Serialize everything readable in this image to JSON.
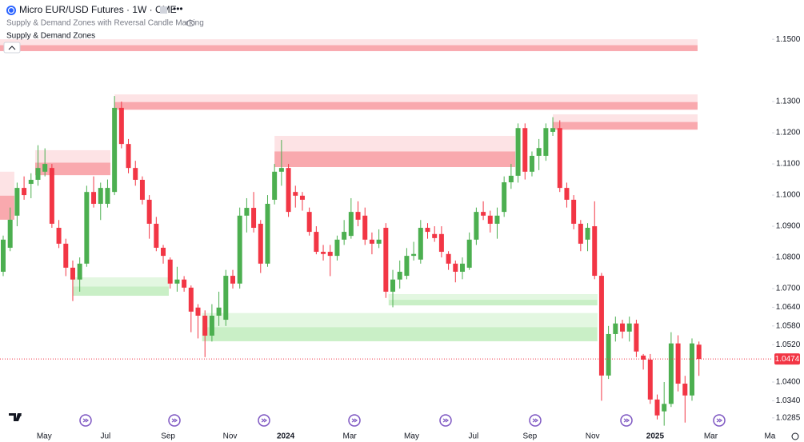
{
  "chart_data": {
    "type": "candlestick",
    "title": "Micro EUR/USD Futures · 1W · CME",
    "indicator_title": "Supply & Demand Zones with Reversal Candle Marking",
    "indicator_name": "Supply & Demand Zones",
    "up_color": "#4caf50",
    "down_color": "#f23645",
    "supply_colors": [
      "#fde3e5",
      "#f9a9ae"
    ],
    "demand_colors": [
      "#c9efc6",
      "#e3f7e1"
    ],
    "grid": false,
    "xlim": [
      -0.46,
      110.5
    ],
    "ylim": [
      1.0241,
      1.1626
    ],
    "xticks": [
      {
        "value": 5.9,
        "label": "May"
      },
      {
        "value": 14.7,
        "label": "Jul"
      },
      {
        "value": 23.7,
        "label": "Sep"
      },
      {
        "value": 32.6,
        "label": "Nov"
      },
      {
        "value": 40.6,
        "label": "2024"
      },
      {
        "value": 49.8,
        "label": "Mar"
      },
      {
        "value": 58.7,
        "label": "May"
      },
      {
        "value": 67.6,
        "label": "Jul"
      },
      {
        "value": 75.7,
        "label": "Sep"
      },
      {
        "value": 84.7,
        "label": "Nov"
      },
      {
        "value": 93.7,
        "label": "2025"
      },
      {
        "value": 101.7,
        "label": "Mar"
      },
      {
        "value": 110.2,
        "label": "Ma"
      }
    ],
    "yticks": [
      {
        "value": 1.15,
        "label": "1.1500"
      },
      {
        "value": 1.13,
        "label": "1.1300"
      },
      {
        "value": 1.12,
        "label": "1.1200"
      },
      {
        "value": 1.11,
        "label": "1.1100"
      },
      {
        "value": 1.1,
        "label": "1.1000"
      },
      {
        "value": 1.09,
        "label": "1.0900"
      },
      {
        "value": 1.08,
        "label": "1.0800"
      },
      {
        "value": 1.07,
        "label": "1.0700"
      },
      {
        "value": 1.064,
        "label": "1.0640"
      },
      {
        "value": 1.058,
        "label": "1.0580"
      },
      {
        "value": 1.052,
        "label": "1.0520"
      },
      {
        "value": 1.04,
        "label": "1.0400"
      },
      {
        "value": 1.034,
        "label": "1.0340"
      },
      {
        "value": 1.0285,
        "label": "1.0285"
      }
    ],
    "last_price": {
      "value": 1.0474,
      "label": "1.0474"
    },
    "zones": [
      {
        "kind": "supply",
        "start": -0.46,
        "end": 99.8,
        "top": 1.15,
        "bottom": 1.1462
      },
      {
        "kind": "supply",
        "start": 16,
        "end": 99.8,
        "top": 1.1323,
        "bottom": 1.1274
      },
      {
        "kind": "supply",
        "start": 79,
        "end": 99.8,
        "top": 1.1259,
        "bottom": 1.121
      },
      {
        "kind": "supply",
        "start": 39,
        "end": 73.6,
        "top": 1.119,
        "bottom": 1.109
      },
      {
        "kind": "supply",
        "start": 4.6,
        "end": 15.4,
        "top": 1.1144,
        "bottom": 1.1064
      },
      {
        "kind": "supply",
        "start": -0.46,
        "end": 1.6,
        "top": 1.1075,
        "bottom": 1.0921
      },
      {
        "kind": "demand",
        "start": 10,
        "end": 23.8,
        "top": 1.0736,
        "bottom": 1.0677
      },
      {
        "kind": "demand",
        "start": 28.6,
        "end": 85.4,
        "top": 1.0621,
        "bottom": 1.0531
      },
      {
        "kind": "demand",
        "start": 55.4,
        "end": 85.4,
        "top": 1.0682,
        "bottom": 1.0646
      }
    ],
    "candles": [
      [
        1.0754,
        1.087,
        1.074,
        1.0857
      ],
      [
        1.0831,
        1.096,
        1.082,
        1.0921
      ],
      [
        1.0934,
        1.104,
        1.09,
        1.1023
      ],
      [
        1.1023,
        1.106,
        1.0985,
        1.1
      ],
      [
        1.1036,
        1.107,
        1.099,
        1.1049
      ],
      [
        1.1049,
        1.116,
        1.103,
        1.1087
      ],
      [
        1.1075,
        1.115,
        1.106,
        1.11
      ],
      [
        1.1087,
        1.11,
        1.0895,
        1.0908
      ],
      [
        1.0895,
        1.092,
        1.083,
        1.0844
      ],
      [
        1.0844,
        1.086,
        1.074,
        1.0767
      ],
      [
        1.0767,
        1.079,
        1.066,
        1.0729
      ],
      [
        1.0729,
        1.08,
        1.069,
        1.078
      ],
      [
        1.078,
        1.103,
        1.077,
        1.101
      ],
      [
        1.101,
        1.106,
        1.096,
        1.0972
      ],
      [
        1.0972,
        1.104,
        1.092,
        1.1023
      ],
      [
        1.0972,
        1.105,
        1.096,
        1.1023
      ],
      [
        1.101,
        1.1318,
        1.1,
        1.128
      ],
      [
        1.128,
        1.13,
        1.115,
        1.1164
      ],
      [
        1.1164,
        1.118,
        1.107,
        1.1087
      ],
      [
        1.1087,
        1.111,
        1.103,
        1.1049
      ],
      [
        1.1049,
        1.106,
        1.097,
        1.0985
      ],
      [
        1.0985,
        1.1,
        1.086,
        1.0908
      ],
      [
        1.0908,
        1.093,
        1.082,
        1.0831
      ],
      [
        1.0831,
        1.084,
        1.078,
        1.0805
      ],
      [
        1.0793,
        1.08,
        1.07,
        1.0716
      ],
      [
        1.0716,
        1.077,
        1.069,
        1.0729
      ],
      [
        1.0729,
        1.074,
        1.069,
        1.0703
      ],
      [
        1.0703,
        1.071,
        1.056,
        1.0626
      ],
      [
        1.0639,
        1.065,
        1.054,
        1.0613
      ],
      [
        1.0613,
        1.063,
        1.048,
        1.0549
      ],
      [
        1.0549,
        1.065,
        1.053,
        1.0613
      ],
      [
        1.0613,
        1.069,
        1.058,
        1.0639
      ],
      [
        1.06,
        1.076,
        1.058,
        1.0741
      ],
      [
        1.0741,
        1.076,
        1.07,
        1.0716
      ],
      [
        1.0716,
        1.096,
        1.07,
        1.0934
      ],
      [
        1.0934,
        1.099,
        1.088,
        1.0959
      ],
      [
        1.0959,
        1.101,
        1.088,
        1.0895
      ],
      [
        1.0908,
        1.092,
        1.075,
        1.078
      ],
      [
        1.078,
        1.1,
        1.077,
        1.0972
      ],
      [
        1.0985,
        1.11,
        1.097,
        1.1075
      ],
      [
        1.1075,
        1.1177,
        1.103,
        1.1087
      ],
      [
        1.1087,
        1.11,
        1.093,
        1.0946
      ],
      [
        1.101,
        1.103,
        1.096,
        1.0998
      ],
      [
        1.0998,
        1.101,
        1.095,
        1.0985
      ],
      [
        1.0946,
        1.096,
        1.087,
        1.0882
      ],
      [
        1.0882,
        1.09,
        1.081,
        1.0818
      ],
      [
        1.0818,
        1.084,
        1.079,
        1.0811
      ],
      [
        1.0818,
        1.084,
        1.074,
        1.0805
      ],
      [
        1.0805,
        1.087,
        1.079,
        1.0857
      ],
      [
        1.0857,
        1.092,
        1.084,
        1.0882
      ],
      [
        1.0869,
        1.099,
        1.086,
        1.0946
      ],
      [
        1.0946,
        1.098,
        1.09,
        1.0921
      ],
      [
        1.0934,
        1.096,
        1.084,
        1.0857
      ],
      [
        1.0857,
        1.088,
        1.081,
        1.0844
      ],
      [
        1.0844,
        1.089,
        1.083,
        1.0857
      ],
      [
        1.0895,
        1.091,
        1.067,
        1.069
      ],
      [
        1.069,
        1.076,
        1.064,
        1.0729
      ],
      [
        1.0729,
        1.079,
        1.07,
        1.0754
      ],
      [
        1.0741,
        1.083,
        1.073,
        1.0805
      ],
      [
        1.0805,
        1.085,
        1.079,
        1.0811
      ],
      [
        1.0793,
        1.092,
        1.078,
        1.0895
      ],
      [
        1.0895,
        1.091,
        1.086,
        1.0882
      ],
      [
        1.0875,
        1.09,
        1.085,
        1.0862
      ],
      [
        1.0875,
        1.09,
        1.08,
        1.0818
      ],
      [
        1.0811,
        1.082,
        1.076,
        1.078
      ],
      [
        1.078,
        1.079,
        1.072,
        1.0754
      ],
      [
        1.0754,
        1.08,
        1.073,
        1.078
      ],
      [
        1.0767,
        1.088,
        1.076,
        1.0857
      ],
      [
        1.0857,
        1.096,
        1.084,
        1.0946
      ],
      [
        1.0946,
        1.098,
        1.092,
        1.0934
      ],
      [
        1.0934,
        1.095,
        1.088,
        1.0908
      ],
      [
        1.0908,
        1.096,
        1.086,
        1.0934
      ],
      [
        1.0946,
        1.106,
        1.093,
        1.1041
      ],
      [
        1.1041,
        1.11,
        1.102,
        1.1062
      ],
      [
        1.1062,
        1.123,
        1.104,
        1.1215
      ],
      [
        1.1215,
        1.123,
        1.105,
        1.1075
      ],
      [
        1.1075,
        1.114,
        1.106,
        1.1126
      ],
      [
        1.1126,
        1.118,
        1.108,
        1.1151
      ],
      [
        1.1126,
        1.123,
        1.111,
        1.1215
      ],
      [
        1.1203,
        1.125,
        1.119,
        1.1215
      ],
      [
        1.1215,
        1.124,
        1.101,
        1.1023
      ],
      [
        1.1023,
        1.104,
        1.096,
        1.0985
      ],
      [
        1.0985,
        1.1,
        1.089,
        1.0908
      ],
      [
        1.0908,
        1.092,
        1.082,
        1.0844
      ],
      [
        1.0857,
        1.091,
        1.082,
        1.0895
      ],
      [
        1.09,
        1.098,
        1.073,
        1.0741
      ],
      [
        1.0741,
        1.075,
        1.034,
        1.0421
      ],
      [
        1.0421,
        1.058,
        1.041,
        1.0554
      ],
      [
        1.0554,
        1.061,
        1.053,
        1.0588
      ],
      [
        1.0588,
        1.06,
        1.054,
        1.0562
      ],
      [
        1.0562,
        1.061,
        1.053,
        1.0588
      ],
      [
        1.0588,
        1.06,
        1.048,
        1.0498
      ],
      [
        1.0485,
        1.049,
        1.044,
        1.0472
      ],
      [
        1.0472,
        1.049,
        1.033,
        1.0344
      ],
      [
        1.0344,
        1.036,
        1.028,
        1.0293
      ],
      [
        1.0306,
        1.04,
        1.026,
        1.033
      ],
      [
        1.033,
        1.056,
        1.032,
        1.0524
      ],
      [
        1.0524,
        1.055,
        1.037,
        1.0395
      ],
      [
        1.0395,
        1.042,
        1.027,
        1.0357
      ],
      [
        1.0357,
        1.054,
        1.034,
        1.0524
      ],
      [
        1.052,
        1.053,
        1.042,
        1.0474
      ]
    ]
  }
}
